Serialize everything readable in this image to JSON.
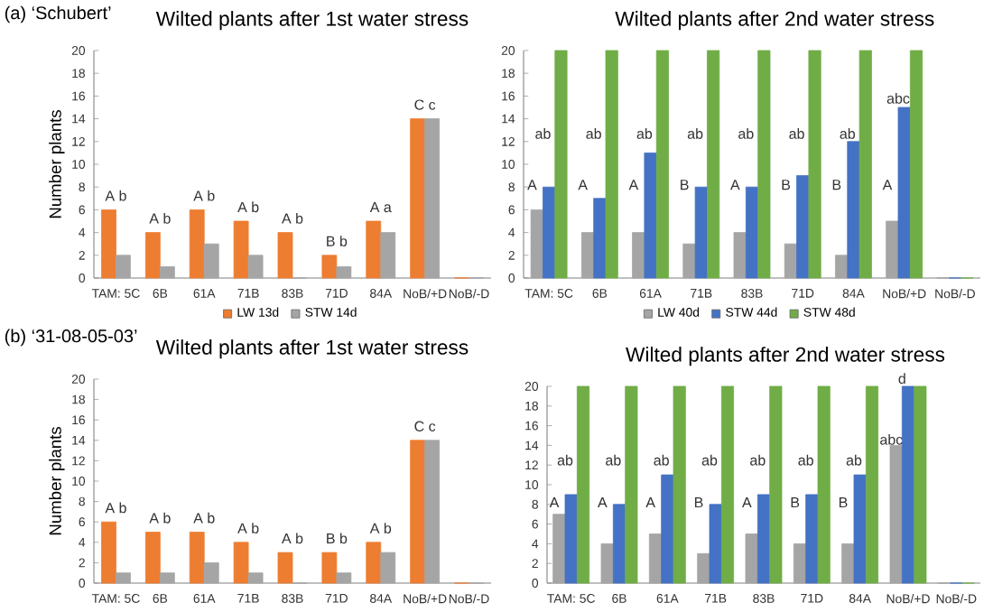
{
  "chart_data": [
    {
      "type": "bar",
      "title": "Wilted plants after 1st water stress",
      "ylabel": "Number plants",
      "categories": [
        "TAM: 5C",
        "6B",
        "61A",
        "71B",
        "83B",
        "71D",
        "84A",
        "NoB/+D",
        "NoB/-D"
      ],
      "series": [
        {
          "name": "LW 13d",
          "color": "#ed7d31",
          "values": [
            6,
            4,
            6,
            5,
            4,
            2,
            5,
            14,
            0
          ]
        },
        {
          "name": "STW 14d",
          "color": "#a5a5a5",
          "values": [
            2,
            1,
            3,
            2,
            0,
            1,
            4,
            14,
            0
          ]
        }
      ],
      "ylim": [
        0,
        20
      ],
      "yticks": [
        0,
        2,
        4,
        6,
        8,
        10,
        12,
        14,
        16,
        18,
        20
      ],
      "legend": "bottom",
      "annotations": [
        "(a) ‘Schubert’",
        {
          "text": "A b",
          "x": "TAM: 5C",
          "y": 6
        },
        {
          "text": "A b",
          "x": "6B",
          "y": 4
        },
        {
          "text": "A b",
          "x": "61A",
          "y": 6
        },
        {
          "text": "A b",
          "x": "71B",
          "y": 5
        },
        {
          "text": "A b",
          "x": "83B",
          "y": 4
        },
        {
          "text": "B b",
          "x": "71D",
          "y": 2
        },
        {
          "text": "A a",
          "x": "84A",
          "y": 5
        },
        {
          "text": "C c",
          "x": "NoB/+D",
          "y": 14
        }
      ]
    },
    {
      "type": "bar",
      "title": "Wilted plants after 2nd water stress",
      "categories": [
        "TAM: 5C",
        "6B",
        "61A",
        "71B",
        "83B",
        "71D",
        "84A",
        "NoB/+D",
        "NoB/-D"
      ],
      "series": [
        {
          "name": "LW 40d",
          "color": "#a5a5a5",
          "values": [
            6,
            4,
            4,
            3,
            4,
            3,
            2,
            5,
            0
          ]
        },
        {
          "name": "STW 44d",
          "color": "#4472c4",
          "values": [
            8,
            7,
            11,
            8,
            8,
            9,
            12,
            15,
            0
          ]
        },
        {
          "name": "STW 48d",
          "color": "#70ad47",
          "values": [
            20,
            20,
            20,
            20,
            20,
            20,
            20,
            20,
            0
          ]
        }
      ],
      "ylim": [
        0,
        20
      ],
      "yticks": [
        0,
        2,
        4,
        6,
        8,
        10,
        12,
        14,
        16,
        18,
        20
      ],
      "legend": "bottom",
      "annotations": [
        {
          "text": "A",
          "x": "TAM: 5C",
          "y": 8.2
        },
        {
          "text": "ab",
          "x": "TAM: 5C",
          "y": 12.7
        },
        {
          "text": "A",
          "x": "6B",
          "y": 8.2
        },
        {
          "text": "ab",
          "x": "6B",
          "y": 12.7
        },
        {
          "text": "A",
          "x": "61A",
          "y": 8.2
        },
        {
          "text": "ab",
          "x": "61A",
          "y": 12.7
        },
        {
          "text": "B",
          "x": "71B",
          "y": 8.2
        },
        {
          "text": "ab",
          "x": "71B",
          "y": 12.7
        },
        {
          "text": "A",
          "x": "83B",
          "y": 8.2
        },
        {
          "text": "ab",
          "x": "83B",
          "y": 12.7
        },
        {
          "text": "B",
          "x": "71D",
          "y": 8.2
        },
        {
          "text": "ab",
          "x": "71D",
          "y": 12.7
        },
        {
          "text": "B",
          "x": "84A",
          "y": 8.2
        },
        {
          "text": "ab",
          "x": "84A",
          "y": 12.7
        },
        {
          "text": "A",
          "x": "NoB/+D",
          "y": 8.2
        },
        {
          "text": "abc",
          "x": "NoB/+D",
          "y": 15.8
        }
      ]
    },
    {
      "type": "bar",
      "title": "Wilted plants after 1st water stress",
      "ylabel": "Number plants",
      "categories": [
        "TAM: 5C",
        "6B",
        "61A",
        "71B",
        "83B",
        "71D",
        "84A",
        "NoB/+D",
        "NoB/-D"
      ],
      "series": [
        {
          "color": "#ed7d31",
          "values": [
            6,
            5,
            5,
            4,
            3,
            3,
            4,
            14,
            0
          ]
        },
        {
          "color": "#a5a5a5",
          "values": [
            1,
            1,
            2,
            1,
            0,
            1,
            3,
            14,
            0
          ]
        }
      ],
      "ylim": [
        0,
        20
      ],
      "yticks": [
        0,
        2,
        4,
        6,
        8,
        10,
        12,
        14,
        16,
        18,
        20
      ],
      "annotations": [
        "(b) ‘31-08-05-03’",
        {
          "text": "A b",
          "x": "TAM: 5C",
          "y": 6
        },
        {
          "text": "A b",
          "x": "6B",
          "y": 5
        },
        {
          "text": "A b",
          "x": "61A",
          "y": 5
        },
        {
          "text": "A b",
          "x": "71B",
          "y": 4
        },
        {
          "text": "A b",
          "x": "83B",
          "y": 3
        },
        {
          "text": "B b",
          "x": "71D",
          "y": 3
        },
        {
          "text": "A b",
          "x": "84A",
          "y": 4
        },
        {
          "text": "C c",
          "x": "NoB/+D",
          "y": 14
        }
      ]
    },
    {
      "type": "bar",
      "title": "Wilted plants after 2nd water stress",
      "categories": [
        "TAM: 5C",
        "6B",
        "61A",
        "71B",
        "83B",
        "71D",
        "84A",
        "NoB/+D",
        "NoB/-D"
      ],
      "series": [
        {
          "color": "#a5a5a5",
          "values": [
            7,
            4,
            5,
            3,
            5,
            4,
            4,
            14,
            0
          ]
        },
        {
          "color": "#4472c4",
          "values": [
            9,
            8,
            11,
            8,
            9,
            9,
            11,
            20,
            0
          ]
        },
        {
          "color": "#70ad47",
          "values": [
            20,
            20,
            20,
            20,
            20,
            20,
            20,
            20,
            0
          ]
        }
      ],
      "ylim": [
        0,
        20
      ],
      "yticks": [
        0,
        2,
        4,
        6,
        8,
        10,
        12,
        14,
        16,
        18,
        20
      ],
      "annotations": [
        {
          "text": "A",
          "x": "TAM: 5C",
          "y": 8.2
        },
        {
          "text": "ab",
          "x": "TAM: 5C",
          "y": 12.5
        },
        {
          "text": "A",
          "x": "6B",
          "y": 8.2
        },
        {
          "text": "ab",
          "x": "6B",
          "y": 12.5
        },
        {
          "text": "A",
          "x": "61A",
          "y": 8.2
        },
        {
          "text": "ab",
          "x": "61A",
          "y": 12.5
        },
        {
          "text": "B",
          "x": "71B",
          "y": 8.2
        },
        {
          "text": "ab",
          "x": "71B",
          "y": 12.5
        },
        {
          "text": "A",
          "x": "83B",
          "y": 8.2
        },
        {
          "text": "ab",
          "x": "83B",
          "y": 12.5
        },
        {
          "text": "B",
          "x": "71D",
          "y": 8.2
        },
        {
          "text": "ab",
          "x": "71D",
          "y": 12.5
        },
        {
          "text": "B",
          "x": "84A",
          "y": 8.2
        },
        {
          "text": "ab",
          "x": "84A",
          "y": 12.5
        },
        {
          "text": "abc",
          "x": "NoB/+D",
          "y": 14.6
        },
        {
          "text": "d",
          "x": "NoB/+D",
          "y": 20.8
        }
      ]
    }
  ]
}
